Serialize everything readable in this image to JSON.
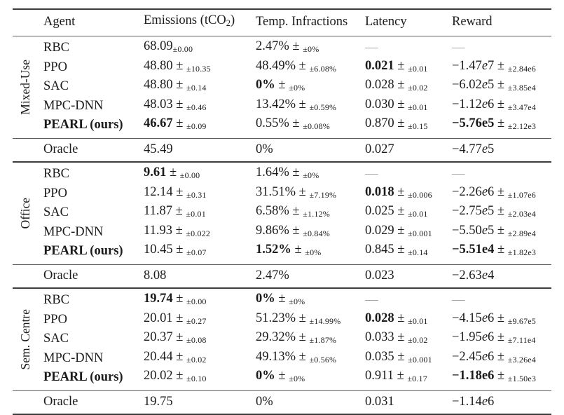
{
  "table": {
    "headers": {
      "agent": "Agent",
      "emissions_pre": "Emissions (tCO",
      "emissions_sub": "2",
      "emissions_post": ")",
      "temp": "Temp. Infractions",
      "latency": "Latency",
      "reward": "Reward"
    },
    "groups": [
      {
        "label": "Mixed-Use",
        "rows": [
          {
            "agent": "RBC",
            "agent_bold": false,
            "emissions": {
              "v": "68.09",
              "pm": false,
              "e": "±0.00",
              "b": false
            },
            "temp": {
              "v": "2.47%",
              "pm": true,
              "e": "±0%",
              "b": false
            },
            "latency": {
              "v": "—",
              "dash": true
            },
            "reward": {
              "v": "—",
              "dash": true
            }
          },
          {
            "agent": "PPO",
            "agent_bold": false,
            "emissions": {
              "v": "48.80",
              "pm": true,
              "e": "±10.35",
              "b": false
            },
            "temp": {
              "v": "48.49%",
              "pm": true,
              "e": "±6.08%",
              "b": false
            },
            "latency": {
              "v": "0.021",
              "pm": true,
              "e": "±0.01",
              "b": true
            },
            "reward": {
              "v": "−1.47e7",
              "pm": true,
              "e": "±2.84e6",
              "b": false
            }
          },
          {
            "agent": "SAC",
            "agent_bold": false,
            "emissions": {
              "v": "48.80",
              "pm": true,
              "e": "±0.14",
              "b": false
            },
            "temp": {
              "v": "0%",
              "pm": true,
              "e": "±0%",
              "b": true
            },
            "latency": {
              "v": "0.028",
              "pm": true,
              "e": "±0.02",
              "b": false
            },
            "reward": {
              "v": "−6.02e5",
              "pm": true,
              "e": "±3.85e4",
              "b": false
            }
          },
          {
            "agent": "MPC-DNN",
            "agent_bold": false,
            "emissions": {
              "v": "48.03",
              "pm": true,
              "e": "±0.46",
              "b": false
            },
            "temp": {
              "v": "13.42%",
              "pm": true,
              "e": "±0.59%",
              "b": false
            },
            "latency": {
              "v": "0.030",
              "pm": true,
              "e": "±0.01",
              "b": false
            },
            "reward": {
              "v": "−1.12e6",
              "pm": true,
              "e": "±3.47e4",
              "b": false
            }
          },
          {
            "agent": "PEARL (ours)",
            "agent_bold": true,
            "emissions": {
              "v": "46.67",
              "pm": true,
              "e": "±0.09",
              "b": true
            },
            "temp": {
              "v": "0.55%",
              "pm": true,
              "e": "±0.08%",
              "b": false
            },
            "latency": {
              "v": "0.870",
              "pm": true,
              "e": "±0.15",
              "b": false
            },
            "reward": {
              "v": "−5.76e5",
              "pm": true,
              "e": "±2.12e3",
              "b": true
            }
          }
        ],
        "oracle": {
          "agent": "Oracle",
          "emissions": {
            "v": "45.49"
          },
          "temp": {
            "v": "0%"
          },
          "latency": {
            "v": "0.027"
          },
          "reward": {
            "v": "−4.77e5"
          }
        }
      },
      {
        "label": "Office",
        "rows": [
          {
            "agent": "RBC",
            "agent_bold": false,
            "emissions": {
              "v": "9.61",
              "pm": true,
              "e": "±0.00",
              "b": true
            },
            "temp": {
              "v": "1.64%",
              "pm": true,
              "e": "±0%",
              "b": false
            },
            "latency": {
              "v": "—",
              "dash": true
            },
            "reward": {
              "v": "—",
              "dash": true
            }
          },
          {
            "agent": "PPO",
            "agent_bold": false,
            "emissions": {
              "v": "12.14",
              "pm": true,
              "e": "±0.31",
              "b": false
            },
            "temp": {
              "v": "31.51%",
              "pm": true,
              "e": "±7.19%",
              "b": false
            },
            "latency": {
              "v": "0.018",
              "pm": true,
              "e": "±0.006",
              "b": true
            },
            "reward": {
              "v": "−2.26e6",
              "pm": true,
              "e": "±1.07e6",
              "b": false
            }
          },
          {
            "agent": "SAC",
            "agent_bold": false,
            "emissions": {
              "v": "11.87",
              "pm": true,
              "e": "±0.01",
              "b": false
            },
            "temp": {
              "v": "6.58%",
              "pm": true,
              "e": "±1.12%",
              "b": false
            },
            "latency": {
              "v": "0.025",
              "pm": true,
              "e": "±0.01",
              "b": false
            },
            "reward": {
              "v": "−2.75e5",
              "pm": true,
              "e": "±2.03e4",
              "b": false
            }
          },
          {
            "agent": "MPC-DNN",
            "agent_bold": false,
            "emissions": {
              "v": "11.93",
              "pm": true,
              "e": "±0.022",
              "b": false
            },
            "temp": {
              "v": "9.86%",
              "pm": true,
              "e": "±0.84%",
              "b": false
            },
            "latency": {
              "v": "0.029",
              "pm": true,
              "e": "±0.001",
              "b": false
            },
            "reward": {
              "v": "−5.50e5",
              "pm": true,
              "e": "±2.89e4",
              "b": false
            }
          },
          {
            "agent": "PEARL (ours)",
            "agent_bold": true,
            "emissions": {
              "v": "10.45",
              "pm": true,
              "e": "±0.07",
              "b": false
            },
            "temp": {
              "v": "1.52%",
              "pm": true,
              "e": "±0%",
              "b": true
            },
            "latency": {
              "v": "0.845",
              "pm": true,
              "e": "±0.14",
              "b": false
            },
            "reward": {
              "v": "−5.51e4",
              "pm": true,
              "e": "±1.82e3",
              "b": true
            }
          }
        ],
        "oracle": {
          "agent": "Oracle",
          "emissions": {
            "v": "8.08"
          },
          "temp": {
            "v": "2.47%"
          },
          "latency": {
            "v": "0.023"
          },
          "reward": {
            "v": "−2.63e4"
          }
        }
      },
      {
        "label": "Sem. Centre",
        "rows": [
          {
            "agent": "RBC",
            "agent_bold": false,
            "emissions": {
              "v": "19.74",
              "pm": true,
              "e": "±0.00",
              "b": true
            },
            "temp": {
              "v": "0%",
              "pm": true,
              "e": "±0%",
              "b": true
            },
            "latency": {
              "v": "—",
              "dash": true
            },
            "reward": {
              "v": "—",
              "dash": true
            }
          },
          {
            "agent": "PPO",
            "agent_bold": false,
            "emissions": {
              "v": "20.01",
              "pm": true,
              "e": "±0.27",
              "b": false
            },
            "temp": {
              "v": "51.23%",
              "pm": true,
              "e": "±14.99%",
              "b": false
            },
            "latency": {
              "v": "0.028",
              "pm": true,
              "e": "±0.01",
              "b": true
            },
            "reward": {
              "v": "−4.15e6",
              "pm": true,
              "e": "±9.67e5",
              "b": false
            }
          },
          {
            "agent": "SAC",
            "agent_bold": false,
            "emissions": {
              "v": "20.37",
              "pm": true,
              "e": "±0.08",
              "b": false
            },
            "temp": {
              "v": "29.32%",
              "pm": true,
              "e": "±1.87%",
              "b": false
            },
            "latency": {
              "v": "0.033",
              "pm": true,
              "e": "±0.02",
              "b": false
            },
            "reward": {
              "v": "−1.95e6",
              "pm": true,
              "e": "±7.11e4",
              "b": false
            }
          },
          {
            "agent": "MPC-DNN",
            "agent_bold": false,
            "emissions": {
              "v": "20.44",
              "pm": true,
              "e": "±0.02",
              "b": false
            },
            "temp": {
              "v": "49.13%",
              "pm": true,
              "e": "±0.56%",
              "b": false
            },
            "latency": {
              "v": "0.035",
              "pm": true,
              "e": "±0.001",
              "b": false
            },
            "reward": {
              "v": "−2.45e6",
              "pm": true,
              "e": "±3.26e4",
              "b": false
            }
          },
          {
            "agent": "PEARL (ours)",
            "agent_bold": true,
            "emissions": {
              "v": "20.02",
              "pm": true,
              "e": "±0.10",
              "b": false
            },
            "temp": {
              "v": "0%",
              "pm": true,
              "e": "±0%",
              "b": true
            },
            "latency": {
              "v": "0.911",
              "pm": true,
              "e": "±0.17",
              "b": false
            },
            "reward": {
              "v": "−1.18e6",
              "pm": true,
              "e": "±1.50e3",
              "b": true
            }
          }
        ],
        "oracle": {
          "agent": "Oracle",
          "emissions": {
            "v": "19.75"
          },
          "temp": {
            "v": "0%"
          },
          "latency": {
            "v": "0.031"
          },
          "reward": {
            "v": "−1.14e6"
          }
        }
      }
    ]
  },
  "colors": {
    "text": "#1b1b1b",
    "rule_heavy": "#3c3c3c",
    "rule_light": "#5e5e5e",
    "dash": "#a3a3a3"
  }
}
